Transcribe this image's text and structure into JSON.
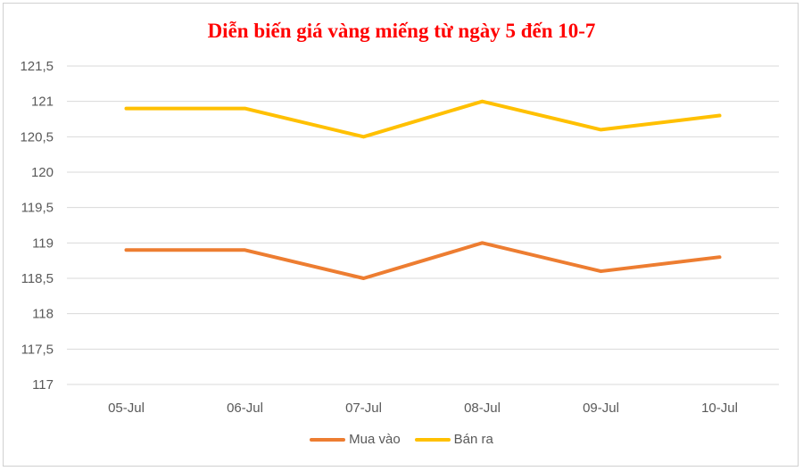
{
  "chart_data": {
    "type": "line",
    "title": "Diễn biến giá vàng miếng từ ngày 5 đến 10-7",
    "xlabel": "",
    "ylabel": "",
    "categories": [
      "05-Jul",
      "06-Jul",
      "07-Jul",
      "08-Jul",
      "09-Jul",
      "10-Jul"
    ],
    "ylim": [
      117,
      121.5
    ],
    "yticks": [
      "117",
      "117,5",
      "118",
      "118,5",
      "119",
      "119,5",
      "120",
      "120,5",
      "121",
      "121,5"
    ],
    "grid": true,
    "legend_position": "bottom",
    "series": [
      {
        "name": "Mua vào",
        "color": "#ed7d31",
        "values": [
          118.9,
          118.9,
          118.5,
          119.0,
          118.6,
          118.8
        ]
      },
      {
        "name": "Bán ra",
        "color": "#ffc000",
        "values": [
          120.9,
          120.9,
          120.5,
          121.0,
          120.6,
          120.8
        ]
      }
    ]
  }
}
